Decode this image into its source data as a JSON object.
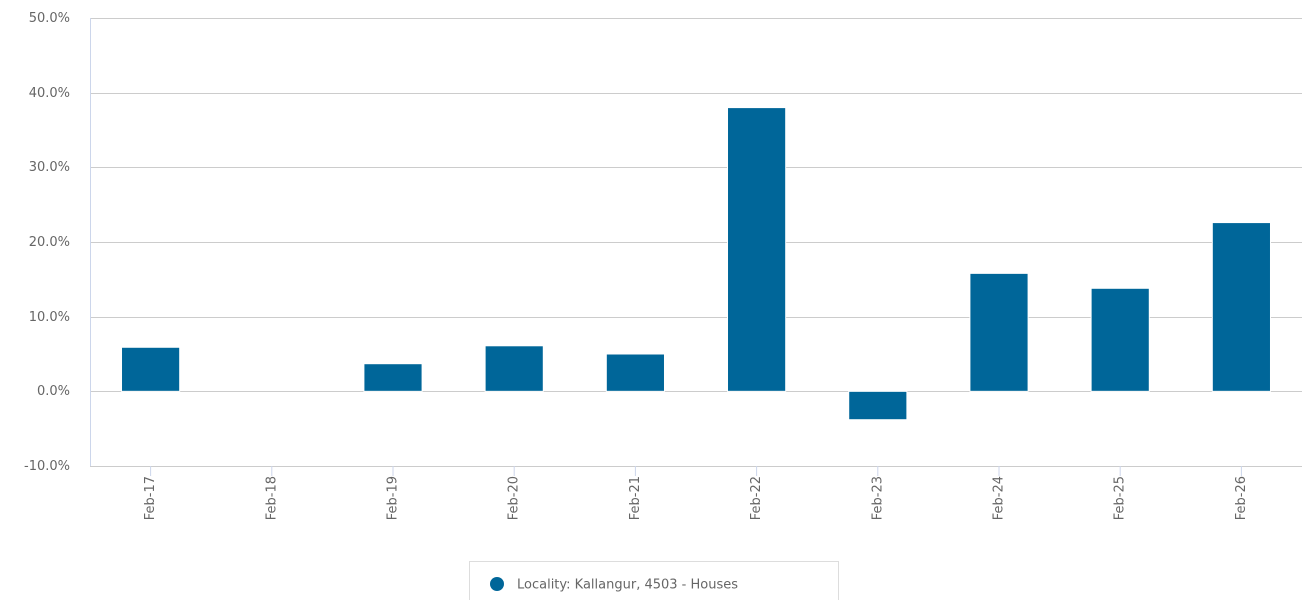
{
  "chart_data": {
    "type": "bar",
    "categories": [
      "Feb-17",
      "Feb-18",
      "Feb-19",
      "Feb-20",
      "Feb-21",
      "Feb-22",
      "Feb-23",
      "Feb-24",
      "Feb-25",
      "Feb-26"
    ],
    "series": [
      {
        "name": "Locality: Kallangur, 4503 - Houses",
        "color": "#006699",
        "values": [
          5.9,
          0,
          3.7,
          6.1,
          5.0,
          38.0,
          -3.8,
          15.8,
          13.8,
          22.6
        ]
      }
    ],
    "ylim": [
      -10,
      50
    ],
    "yticks": [
      {
        "value": -10,
        "label": "-10.0%"
      },
      {
        "value": 0,
        "label": "0.0%"
      },
      {
        "value": 10,
        "label": "10.0%"
      },
      {
        "value": 20,
        "label": "20.0%"
      },
      {
        "value": 30,
        "label": "30.0%"
      },
      {
        "value": 40,
        "label": "40.0%"
      },
      {
        "value": 50,
        "label": "50.0%"
      }
    ],
    "grid": true,
    "legend": "bottom"
  }
}
